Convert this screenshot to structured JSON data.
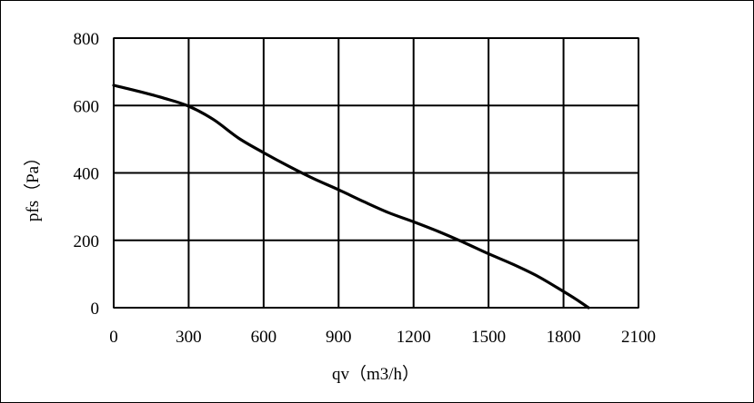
{
  "chart_data": {
    "type": "line",
    "title": "",
    "xlabel": "qv（m3/h）",
    "ylabel": "pfs（Pa）",
    "xlim": [
      0,
      2100
    ],
    "ylim": [
      0,
      800
    ],
    "xticks": [
      0,
      300,
      600,
      900,
      1200,
      1500,
      1800,
      2100
    ],
    "yticks": [
      0,
      200,
      400,
      600,
      800
    ],
    "xtick_labels": [
      "0",
      "300",
      "600",
      "900",
      "1200",
      "1500",
      "1800",
      "2100"
    ],
    "ytick_labels": [
      "0",
      "200",
      "400",
      "600",
      "800"
    ],
    "grid": true,
    "legend": "none",
    "colors": {
      "line": "#000000",
      "grid": "#000000",
      "background": "#ffffff"
    },
    "series": [
      {
        "x": [
          0,
          100,
          200,
          300,
          400,
          500,
          600,
          700,
          800,
          900,
          1000,
          1100,
          1200,
          1300,
          1400,
          1500,
          1600,
          1700,
          1800,
          1850,
          1900
        ],
        "y": [
          660,
          642,
          622,
          598,
          558,
          503,
          460,
          420,
          383,
          350,
          315,
          282,
          255,
          226,
          194,
          160,
          128,
          92,
          48,
          25,
          0
        ]
      }
    ]
  }
}
